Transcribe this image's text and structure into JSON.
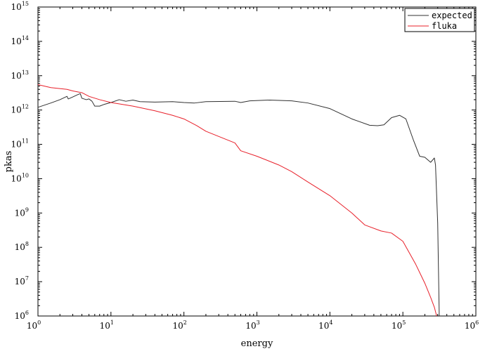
{
  "chart_data": {
    "type": "line",
    "xlabel": "energy",
    "ylabel": "pkas",
    "xscale": "log",
    "yscale": "log",
    "xlim": [
      1,
      1000000
    ],
    "ylim": [
      1000000,
      1000000000000000
    ],
    "x_ticks": [
      {
        "base": "10",
        "exp": "0"
      },
      {
        "base": "10",
        "exp": "1"
      },
      {
        "base": "10",
        "exp": "2"
      },
      {
        "base": "10",
        "exp": "3"
      },
      {
        "base": "10",
        "exp": "4"
      },
      {
        "base": "10",
        "exp": "5"
      },
      {
        "base": "10",
        "exp": "6"
      }
    ],
    "y_ticks": [
      {
        "base": "10",
        "exp": "6"
      },
      {
        "base": "10",
        "exp": "7"
      },
      {
        "base": "10",
        "exp": "8"
      },
      {
        "base": "10",
        "exp": "9"
      },
      {
        "base": "10",
        "exp": "10"
      },
      {
        "base": "10",
        "exp": "11"
      },
      {
        "base": "10",
        "exp": "12"
      },
      {
        "base": "10",
        "exp": "13"
      },
      {
        "base": "10",
        "exp": "14"
      },
      {
        "base": "10",
        "exp": "15"
      }
    ],
    "grid": false,
    "legend_position": "top-right",
    "series": [
      {
        "name": "expected",
        "color": "#303030",
        "points": [
          [
            1,
            1200000000000.0
          ],
          [
            1.5,
            1600000000000.0
          ],
          [
            2.0,
            2000000000000.0
          ],
          [
            2.5,
            2500000000000.0
          ],
          [
            2.6,
            2100000000000.0
          ],
          [
            3.0,
            2400000000000.0
          ],
          [
            3.5,
            2800000000000.0
          ],
          [
            3.8,
            3000000000000.0
          ],
          [
            4.0,
            2200000000000.0
          ],
          [
            4.6,
            2000000000000.0
          ],
          [
            5.0,
            2100000000000.0
          ],
          [
            5.5,
            1800000000000.0
          ],
          [
            6.0,
            1300000000000.0
          ],
          [
            7.0,
            1300000000000.0
          ],
          [
            8.0,
            1450000000000.0
          ],
          [
            10,
            1650000000000.0
          ],
          [
            13,
            2000000000000.0
          ],
          [
            16,
            1800000000000.0
          ],
          [
            20,
            1950000000000.0
          ],
          [
            25,
            1750000000000.0
          ],
          [
            40,
            1700000000000.0
          ],
          [
            70,
            1750000000000.0
          ],
          [
            100,
            1650000000000.0
          ],
          [
            140,
            1600000000000.0
          ],
          [
            200,
            1750000000000.0
          ],
          [
            500,
            1800000000000.0
          ],
          [
            600,
            1650000000000.0
          ],
          [
            800,
            1850000000000.0
          ],
          [
            1500,
            1950000000000.0
          ],
          [
            3000,
            1850000000000.0
          ],
          [
            5000,
            1600000000000.0
          ],
          [
            10000,
            1100000000000.0
          ],
          [
            20000,
            550000000000.0
          ],
          [
            35000,
            360000000000.0
          ],
          [
            45000,
            350000000000.0
          ],
          [
            55000,
            370000000000.0
          ],
          [
            70000,
            600000000000.0
          ],
          [
            90000,
            700000000000.0
          ],
          [
            110000,
            550000000000.0
          ],
          [
            140000,
            130000000000.0
          ],
          [
            170000,
            45000000000.0
          ],
          [
            200000,
            42000000000.0
          ],
          [
            240000,
            30000000000.0
          ],
          [
            270000,
            40000000000.0
          ],
          [
            280000,
            25000000000.0
          ],
          [
            300000,
            500000000.0
          ],
          [
            315000,
            1000000.0
          ]
        ]
      },
      {
        "name": "fluka",
        "color": "#e8202a",
        "points": [
          [
            1,
            5500000000000.0
          ],
          [
            1.5,
            4500000000000.0
          ],
          [
            2.5,
            4000000000000.0
          ],
          [
            3.0,
            3600000000000.0
          ],
          [
            4.0,
            3200000000000.0
          ],
          [
            5.0,
            2500000000000.0
          ],
          [
            7.0,
            2000000000000.0
          ],
          [
            10,
            1650000000000.0
          ],
          [
            20,
            1300000000000.0
          ],
          [
            40,
            950000000000.0
          ],
          [
            70,
            700000000000.0
          ],
          [
            100,
            550000000000.0
          ],
          [
            150,
            350000000000.0
          ],
          [
            200,
            240000000000.0
          ],
          [
            300,
            170000000000.0
          ],
          [
            500,
            110000000000.0
          ],
          [
            600,
            65000000000.0
          ],
          [
            1000,
            45000000000.0
          ],
          [
            2000,
            25000000000.0
          ],
          [
            3000,
            16000000000.0
          ],
          [
            5000,
            8000000000.0
          ],
          [
            10000,
            3200000000.0
          ],
          [
            20000,
            1000000000.0
          ],
          [
            30000,
            450000000.0
          ],
          [
            50000,
            300000000.0
          ],
          [
            70000,
            260000000.0
          ],
          [
            100000,
            150000000.0
          ],
          [
            150000,
            32000000.0
          ],
          [
            200000,
            9000000.0
          ],
          [
            240000,
            3500000.0
          ],
          [
            270000,
            1800000.0
          ],
          [
            290000,
            1000000.0
          ]
        ]
      }
    ]
  }
}
